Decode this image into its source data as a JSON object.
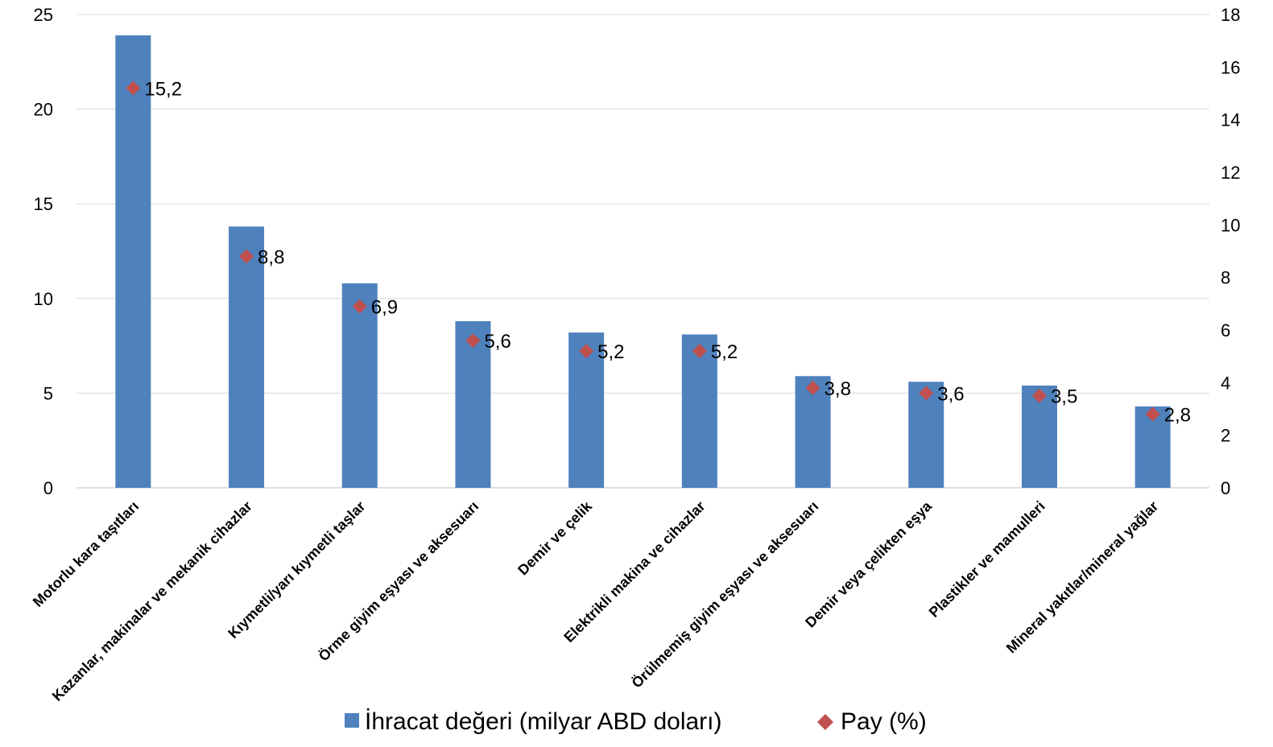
{
  "chart_data": {
    "type": "bar",
    "categories": [
      "Motorlu kara taşıtları",
      "Kazanlar, makinalar ve mekanik cihazlar",
      "Kıymetli/yarı kıymetli taşlar",
      "Örme giyim eşyası ve aksesuarı",
      "Demir ve çelik",
      "Elektrikli makina ve cihazlar",
      "Örülmemiş giyim eşyası ve aksesuarı",
      "Demir veya çelikten eşya",
      "Plastikler ve mamulleri",
      "Mineral yakıtlar/mineral yağlar"
    ],
    "series": [
      {
        "name": "İhracat değeri (milyar ABD doları)",
        "type": "bar",
        "axis": "left",
        "color": "#4F81BD",
        "values": [
          23.9,
          13.8,
          10.8,
          8.8,
          8.2,
          8.1,
          5.9,
          5.6,
          5.4,
          4.3
        ]
      },
      {
        "name": "Pay (%)",
        "type": "marker",
        "axis": "right",
        "color": "#C0504D",
        "marker": "diamond",
        "values": [
          15.2,
          8.8,
          6.9,
          5.6,
          5.2,
          5.2,
          3.8,
          3.6,
          3.5,
          2.8
        ],
        "labels": [
          "15,2",
          "8,8",
          "6,9",
          "5,6",
          "5,2",
          "5,2",
          "3,8",
          "3,6",
          "3,5",
          "2,8"
        ]
      }
    ],
    "ylim": [
      0,
      25
    ],
    "yticks": [
      "0",
      "5",
      "10",
      "15",
      "20",
      "25"
    ],
    "y2lim": [
      0,
      18
    ],
    "y2ticks": [
      "0",
      "2",
      "4",
      "6",
      "8",
      "10",
      "12",
      "14",
      "16",
      "18"
    ],
    "grid": true,
    "legend_position": "bottom"
  }
}
